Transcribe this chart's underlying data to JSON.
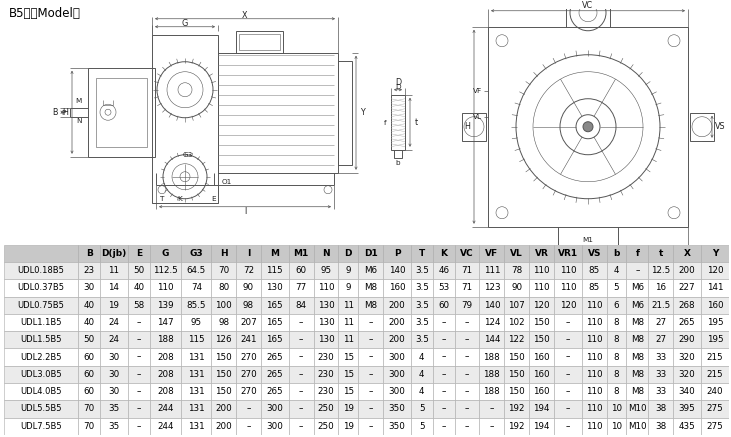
{
  "title": "B5型（Model）",
  "header": [
    "",
    "B",
    "D(jb)",
    "E",
    "G",
    "G3",
    "H",
    "I",
    "M",
    "M1",
    "N",
    "D",
    "D1",
    "P",
    "T",
    "K",
    "VC",
    "VF",
    "VL",
    "VR",
    "VR1",
    "VS",
    "b",
    "f",
    "t",
    "X",
    "Y"
  ],
  "rows": [
    [
      "UDL0.18B5",
      "23",
      "11",
      "50",
      "112.5",
      "64.5",
      "70",
      "72",
      "115",
      "60",
      "95",
      "9",
      "M6",
      "140",
      "3.5",
      "46",
      "71",
      "111",
      "78",
      "110",
      "110",
      "85",
      "4",
      "–",
      "12.5",
      "200",
      "120"
    ],
    [
      "UDL0.37B5",
      "30",
      "14",
      "40",
      "110",
      "74",
      "80",
      "90",
      "130",
      "77",
      "110",
      "9",
      "M8",
      "160",
      "3.5",
      "53",
      "71",
      "123",
      "90",
      "110",
      "110",
      "85",
      "5",
      "M6",
      "16",
      "227",
      "141"
    ],
    [
      "UDL0.75B5",
      "40",
      "19",
      "58",
      "139",
      "85.5",
      "100",
      "98",
      "165",
      "84",
      "130",
      "11",
      "M8",
      "200",
      "3.5",
      "60",
      "79",
      "140",
      "107",
      "120",
      "120",
      "110",
      "6",
      "M6",
      "21.5",
      "268",
      "160"
    ],
    [
      "UDL1.1B5",
      "40",
      "24",
      "–",
      "147",
      "95",
      "98",
      "207",
      "165",
      "–",
      "130",
      "11",
      "–",
      "200",
      "3.5",
      "–",
      "–",
      "124",
      "102",
      "150",
      "–",
      "110",
      "8",
      "M8",
      "27",
      "265",
      "195"
    ],
    [
      "UDL1.5B5",
      "50",
      "24",
      "–",
      "188",
      "115",
      "126",
      "241",
      "165",
      "–",
      "130",
      "11",
      "–",
      "200",
      "3.5",
      "–",
      "–",
      "144",
      "122",
      "150",
      "–",
      "110",
      "8",
      "M8",
      "27",
      "290",
      "195"
    ],
    [
      "UDL2.2B5",
      "60",
      "30",
      "–",
      "208",
      "131",
      "150",
      "270",
      "265",
      "–",
      "230",
      "15",
      "–",
      "300",
      "4",
      "–",
      "–",
      "188",
      "150",
      "160",
      "–",
      "110",
      "8",
      "M8",
      "33",
      "320",
      "215"
    ],
    [
      "UDL3.0B5",
      "60",
      "30",
      "–",
      "208",
      "131",
      "150",
      "270",
      "265",
      "–",
      "230",
      "15",
      "–",
      "300",
      "4",
      "–",
      "–",
      "188",
      "150",
      "160",
      "–",
      "110",
      "8",
      "M8",
      "33",
      "320",
      "215"
    ],
    [
      "UDL4.0B5",
      "60",
      "30",
      "–",
      "208",
      "131",
      "150",
      "270",
      "265",
      "–",
      "230",
      "15",
      "–",
      "300",
      "4",
      "–",
      "–",
      "188",
      "150",
      "160",
      "–",
      "110",
      "8",
      "M8",
      "33",
      "340",
      "240"
    ],
    [
      "UDL5.5B5",
      "70",
      "35",
      "–",
      "244",
      "131",
      "200",
      "–",
      "300",
      "–",
      "250",
      "19",
      "–",
      "350",
      "5",
      "–",
      "–",
      "–",
      "192",
      "194",
      "–",
      "110",
      "10",
      "M10",
      "38",
      "395",
      "275"
    ],
    [
      "UDL7.5B5",
      "70",
      "35",
      "–",
      "244",
      "131",
      "200",
      "–",
      "300",
      "–",
      "250",
      "19",
      "–",
      "350",
      "5",
      "–",
      "–",
      "–",
      "192",
      "194",
      "–",
      "110",
      "10",
      "M10",
      "38",
      "435",
      "275"
    ]
  ],
  "header_bg": "#c8c8c8",
  "row_bg_odd": "#ebebeb",
  "row_bg_even": "#ffffff",
  "border_color": "#aaaaaa",
  "col_widths_raw": [
    7.5,
    2.2,
    2.8,
    2.2,
    3.2,
    3.0,
    2.5,
    2.5,
    2.8,
    2.5,
    2.5,
    2.0,
    2.5,
    2.8,
    2.2,
    2.2,
    2.5,
    2.5,
    2.5,
    2.5,
    2.8,
    2.5,
    2.0,
    2.2,
    2.5,
    2.8,
    2.8
  ]
}
